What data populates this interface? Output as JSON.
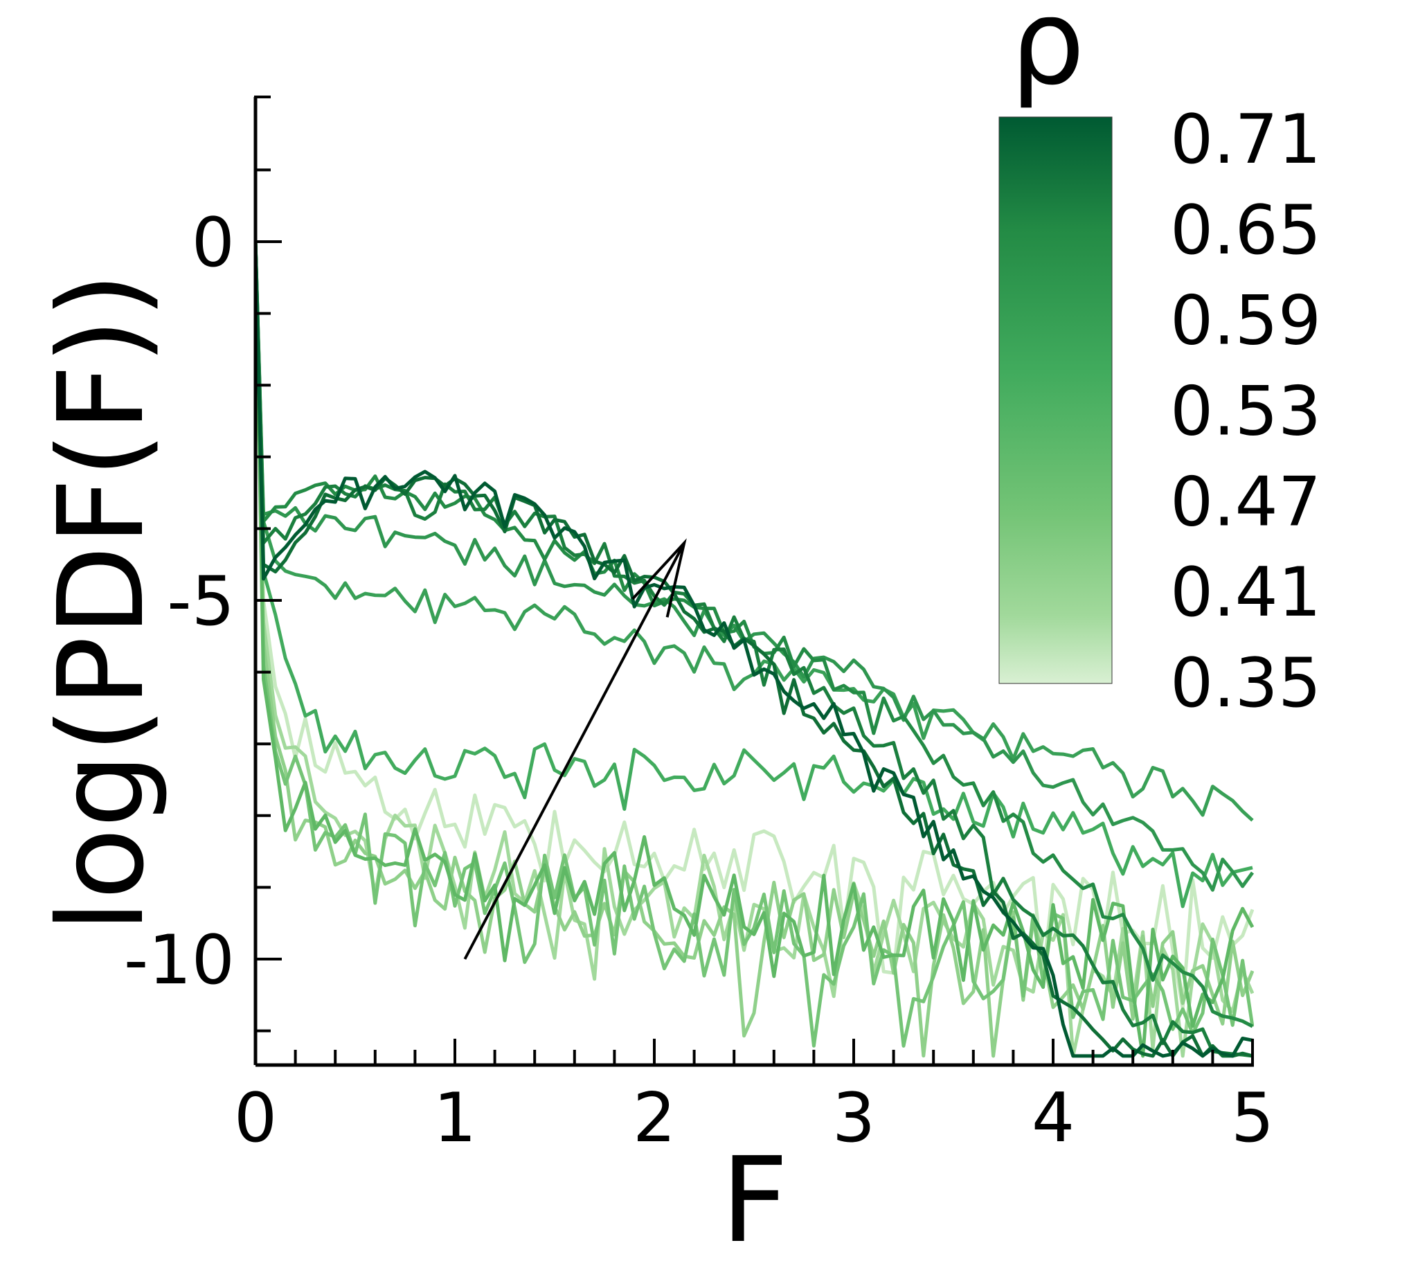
{
  "chart_data": {
    "type": "line",
    "title": "",
    "xlabel": "F",
    "ylabel": "log(PDF(F))",
    "xlim": [
      0,
      5
    ],
    "ylim": [
      -11.5,
      2
    ],
    "x_ticks": [
      "0",
      "1",
      "2",
      "3",
      "4",
      "5"
    ],
    "y_ticks": [
      "0",
      "-5",
      "-10"
    ],
    "grid": false,
    "legend": "colorbar top-right",
    "colorbar": {
      "title": "ρ",
      "labels": [
        "0.71",
        "0.65",
        "0.59",
        "0.53",
        "0.47",
        "0.41",
        "0.35"
      ],
      "color_high": "#005a32",
      "color_low": "#d9f0d3"
    },
    "annotation": {
      "type": "arrow",
      "from": [
        1.05,
        -10.0
      ],
      "to": [
        2.15,
        -4.2
      ]
    },
    "series": [
      {
        "rho": 0.35,
        "color": "#c7e9c0",
        "seed": 11,
        "noise": 0.55,
        "points": [
          [
            0,
            0
          ],
          [
            0.04,
            -5
          ],
          [
            0.1,
            -6.2
          ],
          [
            0.3,
            -7.0
          ],
          [
            0.6,
            -7.6
          ],
          [
            1.0,
            -8.0
          ],
          [
            1.5,
            -8.2
          ],
          [
            2.0,
            -8.4
          ],
          [
            2.5,
            -8.7
          ],
          [
            3.0,
            -8.9
          ],
          [
            3.5,
            -9.0
          ],
          [
            4.0,
            -9.2
          ],
          [
            4.5,
            -9.4
          ],
          [
            5.0,
            -9.5
          ]
        ]
      },
      {
        "rho": 0.38,
        "color": "#a1d99b",
        "seed": 23,
        "noise": 0.65,
        "points": [
          [
            0,
            0
          ],
          [
            0.04,
            -5.3
          ],
          [
            0.1,
            -6.6
          ],
          [
            0.3,
            -7.6
          ],
          [
            0.6,
            -8.2
          ],
          [
            1.0,
            -8.6
          ],
          [
            1.5,
            -8.9
          ],
          [
            2.0,
            -9.1
          ],
          [
            2.5,
            -9.3
          ],
          [
            3.0,
            -9.5
          ],
          [
            3.5,
            -9.7
          ],
          [
            4.0,
            -9.9
          ],
          [
            4.5,
            -10.1
          ],
          [
            5.0,
            -10.2
          ]
        ]
      },
      {
        "rho": 0.41,
        "color": "#8fd08a",
        "seed": 37,
        "noise": 0.7,
        "points": [
          [
            0,
            0
          ],
          [
            0.04,
            -5.6
          ],
          [
            0.1,
            -6.9
          ],
          [
            0.3,
            -7.9
          ],
          [
            0.6,
            -8.5
          ],
          [
            1.0,
            -8.8
          ],
          [
            1.5,
            -9.1
          ],
          [
            2.0,
            -9.3
          ],
          [
            2.5,
            -9.5
          ],
          [
            3.0,
            -9.7
          ],
          [
            3.5,
            -9.8
          ],
          [
            4.0,
            -10.0
          ],
          [
            4.5,
            -10.2
          ],
          [
            5.0,
            -10.4
          ]
        ]
      },
      {
        "rho": 0.44,
        "color": "#74c476",
        "seed": 41,
        "noise": 0.75,
        "points": [
          [
            0,
            0
          ],
          [
            0.04,
            -5.9
          ],
          [
            0.1,
            -7.1
          ],
          [
            0.3,
            -8.0
          ],
          [
            0.6,
            -8.6
          ],
          [
            1.0,
            -9.0
          ],
          [
            1.5,
            -9.2
          ],
          [
            2.0,
            -9.4
          ],
          [
            2.5,
            -9.6
          ],
          [
            3.0,
            -9.8
          ],
          [
            3.5,
            -9.9
          ],
          [
            4.0,
            -10.1
          ],
          [
            4.5,
            -10.3
          ],
          [
            5.0,
            -10.5
          ]
        ]
      },
      {
        "rho": 0.47,
        "color": "#5fb865",
        "seed": 53,
        "noise": 0.7,
        "points": [
          [
            0,
            0
          ],
          [
            0.04,
            -6.1
          ],
          [
            0.1,
            -7.2
          ],
          [
            0.3,
            -7.9
          ],
          [
            0.6,
            -8.3
          ],
          [
            1.0,
            -8.6
          ],
          [
            1.5,
            -8.8
          ],
          [
            2.0,
            -9.0
          ],
          [
            2.5,
            -9.2
          ],
          [
            3.0,
            -9.4
          ],
          [
            3.5,
            -9.6
          ],
          [
            4.0,
            -9.8
          ],
          [
            4.5,
            -9.9
          ],
          [
            5.0,
            -10.0
          ]
        ]
      },
      {
        "rho": 0.53,
        "color": "#41ab5d",
        "seed": 61,
        "noise": 0.35,
        "points": [
          [
            0,
            0
          ],
          [
            0.04,
            -4.6
          ],
          [
            0.1,
            -5.2
          ],
          [
            0.2,
            -6.2
          ],
          [
            0.35,
            -6.8
          ],
          [
            0.6,
            -7.2
          ],
          [
            1.0,
            -7.3
          ],
          [
            1.5,
            -7.3
          ],
          [
            2.0,
            -7.4
          ],
          [
            2.5,
            -7.3
          ],
          [
            3.0,
            -7.5
          ],
          [
            3.5,
            -7.8
          ],
          [
            4.0,
            -8.2
          ],
          [
            4.5,
            -8.6
          ],
          [
            5.0,
            -9.0
          ]
        ]
      },
      {
        "rho": 0.56,
        "color": "#38a056",
        "seed": 71,
        "noise": 0.18,
        "points": [
          [
            0,
            0
          ],
          [
            0.04,
            -3.9
          ],
          [
            0.1,
            -4.45
          ],
          [
            0.3,
            -4.8
          ],
          [
            0.6,
            -4.95
          ],
          [
            1.0,
            -5.0
          ],
          [
            1.5,
            -5.2
          ],
          [
            2.0,
            -5.55
          ],
          [
            2.5,
            -5.9
          ],
          [
            3.0,
            -6.25
          ],
          [
            3.5,
            -6.65
          ],
          [
            4.0,
            -7.05
          ],
          [
            4.5,
            -7.5
          ],
          [
            5.0,
            -7.9
          ]
        ]
      },
      {
        "rho": 0.59,
        "color": "#2e964f",
        "seed": 79,
        "noise": 0.17,
        "points": [
          [
            0,
            0
          ],
          [
            0.04,
            -3.8
          ],
          [
            0.1,
            -3.75
          ],
          [
            0.3,
            -3.85
          ],
          [
            0.6,
            -3.95
          ],
          [
            1.0,
            -4.2
          ],
          [
            1.5,
            -4.6
          ],
          [
            2.0,
            -5.0
          ],
          [
            2.5,
            -5.5
          ],
          [
            3.0,
            -6.0
          ],
          [
            3.5,
            -6.7
          ],
          [
            4.0,
            -7.5
          ],
          [
            4.5,
            -8.3
          ],
          [
            5.0,
            -8.9
          ]
        ]
      },
      {
        "rho": 0.62,
        "color": "#238b45",
        "seed": 89,
        "noise": 0.2,
        "points": [
          [
            0,
            0
          ],
          [
            0.04,
            -3.9
          ],
          [
            0.1,
            -3.7
          ],
          [
            0.3,
            -3.45
          ],
          [
            0.6,
            -3.4
          ],
          [
            1.0,
            -3.6
          ],
          [
            1.5,
            -4.2
          ],
          [
            2.0,
            -4.9
          ],
          [
            2.5,
            -5.5
          ],
          [
            3.0,
            -6.2
          ],
          [
            3.5,
            -7.3
          ],
          [
            4.0,
            -8.6
          ],
          [
            4.5,
            -9.9
          ],
          [
            5.0,
            -11.0
          ]
        ]
      },
      {
        "rho": 0.65,
        "color": "#1a7f3e",
        "seed": 97,
        "noise": 0.22,
        "points": [
          [
            0,
            0
          ],
          [
            0.04,
            -4.2
          ],
          [
            0.1,
            -4.0
          ],
          [
            0.3,
            -3.55
          ],
          [
            0.6,
            -3.4
          ],
          [
            1.0,
            -3.5
          ],
          [
            1.5,
            -4.0
          ],
          [
            2.0,
            -4.8
          ],
          [
            2.5,
            -5.6
          ],
          [
            3.0,
            -6.6
          ],
          [
            3.5,
            -8.0
          ],
          [
            4.0,
            -9.6
          ],
          [
            4.5,
            -11.0
          ],
          [
            5.0,
            -11.3
          ]
        ]
      },
      {
        "rho": 0.68,
        "color": "#0f6e36",
        "seed": 103,
        "noise": 0.22,
        "points": [
          [
            0,
            0
          ],
          [
            0.04,
            -4.5
          ],
          [
            0.1,
            -4.6
          ],
          [
            0.3,
            -3.7
          ],
          [
            0.6,
            -3.35
          ],
          [
            1.0,
            -3.45
          ],
          [
            1.5,
            -3.95
          ],
          [
            2.0,
            -4.8
          ],
          [
            2.5,
            -5.8
          ],
          [
            3.0,
            -7.0
          ],
          [
            3.5,
            -8.5
          ],
          [
            4.0,
            -10.3
          ],
          [
            4.2,
            -11.2
          ],
          [
            5.0,
            -11.3
          ]
        ]
      },
      {
        "rho": 0.71,
        "color": "#005a32",
        "seed": 113,
        "noise": 0.22,
        "points": [
          [
            0,
            0
          ],
          [
            0.04,
            -4.7
          ],
          [
            0.1,
            -4.4
          ],
          [
            0.3,
            -3.6
          ],
          [
            0.6,
            -3.3
          ],
          [
            1.0,
            -3.4
          ],
          [
            1.5,
            -3.9
          ],
          [
            2.0,
            -4.75
          ],
          [
            2.5,
            -5.7
          ],
          [
            3.0,
            -6.9
          ],
          [
            3.5,
            -8.6
          ],
          [
            4.0,
            -10.2
          ],
          [
            4.1,
            -11.3
          ],
          [
            5.0,
            -11.3
          ]
        ]
      }
    ]
  }
}
